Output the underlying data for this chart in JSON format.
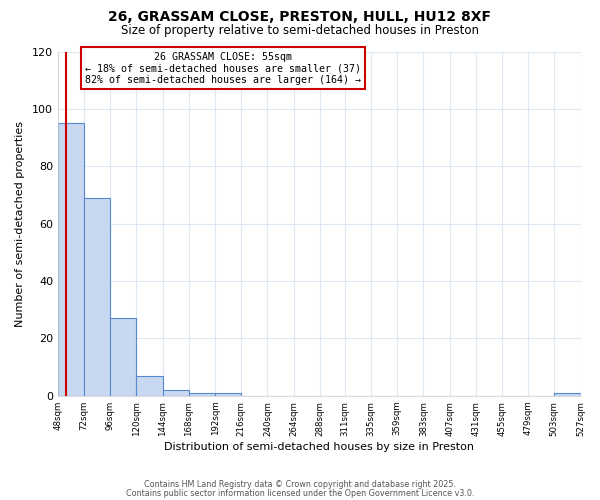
{
  "title_line1": "26, GRASSAM CLOSE, PRESTON, HULL, HU12 8XF",
  "title_line2": "Size of property relative to semi-detached houses in Preston",
  "xlabel": "Distribution of semi-detached houses by size in Preston",
  "ylabel": "Number of semi-detached properties",
  "bin_edges": [
    48,
    72,
    96,
    120,
    144,
    168,
    192,
    216,
    240,
    264,
    288,
    311,
    335,
    359,
    383,
    407,
    431,
    455,
    479,
    503,
    527
  ],
  "bar_heights": [
    95,
    69,
    27,
    7,
    2,
    1,
    1,
    0,
    0,
    0,
    0,
    0,
    0,
    0,
    0,
    0,
    0,
    0,
    0,
    1
  ],
  "bar_color": "#c8d8f0",
  "bar_edge_color": "#5588cc",
  "property_size": 55,
  "property_label": "26 GRASSAM CLOSE: 55sqm",
  "pct_smaller": 18,
  "pct_larger": 82,
  "count_smaller": 37,
  "count_larger": 164,
  "vline_color": "#cc0000",
  "ylim": [
    0,
    120
  ],
  "yticks": [
    0,
    20,
    40,
    60,
    80,
    100,
    120
  ],
  "annotation_box_color": "#ffffff",
  "annotation_box_edge": "#cc0000",
  "footer_line1": "Contains HM Land Registry data © Crown copyright and database right 2025.",
  "footer_line2": "Contains public sector information licensed under the Open Government Licence v3.0.",
  "bg_color": "#ffffff",
  "plot_bg_color": "#ffffff",
  "grid_color": "#dde8f5"
}
